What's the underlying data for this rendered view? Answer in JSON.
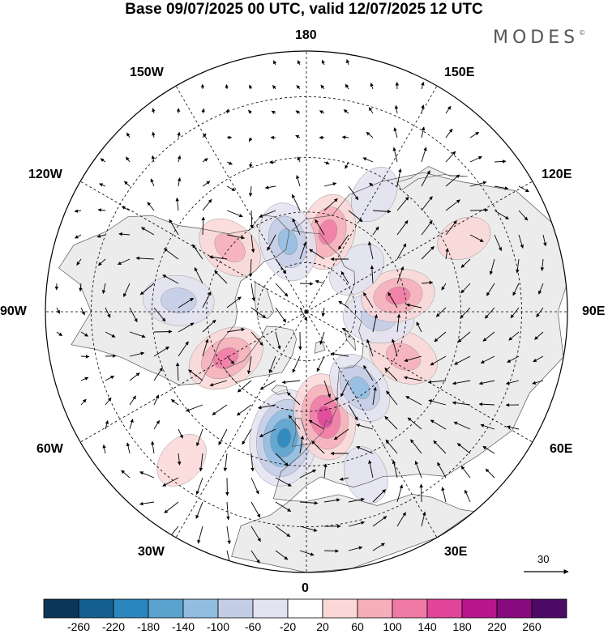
{
  "title": "Base 09/07/2025 00 UTC, valid 12/07/2025 12 UTC",
  "brand": {
    "name": "MODES",
    "mark": "©"
  },
  "meridian_labels": {
    "top": "180",
    "bottom": "0",
    "left": "90W",
    "right": "90E",
    "upper_left_1": "150W",
    "upper_left_2": "120W",
    "upper_right_1": "150E",
    "upper_right_2": "120E",
    "lower_left_1": "60W",
    "lower_left_2": "30W",
    "lower_right_1": "60E",
    "lower_right_2": "30E"
  },
  "reference_vector": {
    "label": "30"
  },
  "colorbar": {
    "colors": [
      "#0c3657",
      "#155f8e",
      "#2b86bd",
      "#5aa3cf",
      "#91bde0",
      "#c3cde6",
      "#e3e2f1",
      "#ffffff",
      "#fbd7d7",
      "#f6aeb8",
      "#f07aa6",
      "#e0459a",
      "#b7168b",
      "#870b7d",
      "#4d0a66"
    ],
    "tick_labels": [
      "-260",
      "-220",
      "-180",
      "-140",
      "-100",
      "-60",
      "-20",
      "20",
      "60",
      "100",
      "140",
      "180",
      "220",
      "260"
    ]
  },
  "map": {
    "projection": "north polar stereographic",
    "land_color": "#ececec",
    "ocean_color": "#ffffff",
    "coast_color": "#555555",
    "anomalies": [
      {
        "lon": -10,
        "lat": 52,
        "value": -200
      },
      {
        "lon": -60,
        "lat": 62,
        "value": 130
      },
      {
        "lon": 10,
        "lat": 58,
        "value": 160
      },
      {
        "lon": 35,
        "lat": 62,
        "value": -110
      },
      {
        "lon": 65,
        "lat": 58,
        "value": 100
      },
      {
        "lon": 85,
        "lat": 68,
        "value": -100
      },
      {
        "lon": 100,
        "lat": 62,
        "value": 110
      },
      {
        "lon": 130,
        "lat": 70,
        "value": -60
      },
      {
        "lon": 165,
        "lat": 65,
        "value": 120
      },
      {
        "lon": -165,
        "lat": 68,
        "value": -130
      },
      {
        "lon": -130,
        "lat": 60,
        "value": 90
      },
      {
        "lon": -95,
        "lat": 52,
        "value": -100
      },
      {
        "lon": 150,
        "lat": 50,
        "value": -50
      },
      {
        "lon": 115,
        "lat": 40,
        "value": 40
      },
      {
        "lon": 20,
        "lat": 40,
        "value": -50
      },
      {
        "lon": -40,
        "lat": 35,
        "value": 50
      }
    ]
  }
}
